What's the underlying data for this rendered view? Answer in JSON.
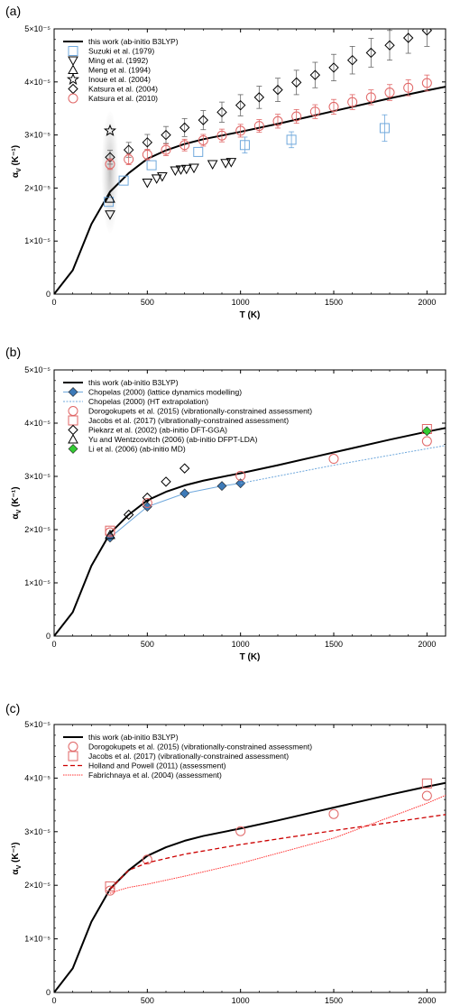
{
  "chart_data": [
    {
      "panel_label": "(a)",
      "type": "line+scatter",
      "xlabel": "T (K)",
      "ylabel": "α",
      "ylabel_sub": "V",
      "ylabel_units": " (K⁻¹)",
      "xlim": [
        0,
        2100
      ],
      "ylim": [
        0,
        5e-05
      ],
      "x_ticks": [
        0,
        500,
        1000,
        1500,
        2000
      ],
      "y_ticks": [
        0,
        1e-05,
        2e-05,
        3e-05,
        4e-05,
        5e-05
      ],
      "y_tick_labels": [
        "0",
        "1×10⁻⁵",
        "2×10⁻⁵",
        "3×10⁻⁵",
        "4×10⁻⁵",
        "5×10⁻⁵"
      ],
      "highlight_ellipse": {
        "x_center": 300,
        "x_half_width": 45,
        "y_center": 2.3e-05,
        "y_half_height": 1.15e-05
      },
      "series": [
        {
          "name": "this work (ab-initio B3LYP)",
          "kind": "line",
          "color": "#000000",
          "dash": "none",
          "width": 2,
          "x": [
            0,
            100,
            200,
            300,
            400,
            500,
            600,
            700,
            800,
            1000,
            1200,
            1400,
            1600,
            1800,
            2000,
            2100
          ],
          "y": [
            0.0,
            4.5e-06,
            1.32e-05,
            1.93e-05,
            2.28e-05,
            2.55e-05,
            2.71e-05,
            2.83e-05,
            2.92e-05,
            3.06e-05,
            3.21e-05,
            3.37e-05,
            3.53e-05,
            3.69e-05,
            3.84e-05,
            3.91e-05
          ]
        },
        {
          "name": "Suzuki et al. (1979)",
          "kind": "marker",
          "marker": "square",
          "color": "#6fa8dc",
          "x": [
            293,
            373,
            523,
            773,
            1023,
            1273,
            1773
          ],
          "y": [
            1.74e-05,
            2.14e-05,
            2.43e-05,
            2.68e-05,
            2.81e-05,
            2.91e-05,
            3.13e-05
          ],
          "err": [
            0,
            0,
            0,
            0,
            1.5e-06,
            1.5e-06,
            2.5e-06
          ]
        },
        {
          "name": "Ming et al. (1992)",
          "kind": "marker",
          "marker": "triangle-down",
          "color": "#000000",
          "x": [
            300,
            500,
            550,
            580,
            650,
            680,
            710,
            750,
            850,
            920,
            950
          ],
          "y": [
            1.5e-05,
            2.1e-05,
            2.18e-05,
            2.22e-05,
            2.33e-05,
            2.35e-05,
            2.36e-05,
            2.38e-05,
            2.45e-05,
            2.47e-05,
            2.49e-05
          ]
        },
        {
          "name": "Meng et al. (1994)",
          "kind": "marker",
          "marker": "triangle-up",
          "color": "#000000",
          "x": [
            300
          ],
          "y": [
            1.8e-05
          ]
        },
        {
          "name": "Inoue et al. (2004)",
          "kind": "marker",
          "marker": "star",
          "color": "#000000",
          "x": [
            300
          ],
          "y": [
            3.08e-05
          ]
        },
        {
          "name": "Katsura et al. (2004)",
          "kind": "marker",
          "marker": "diamond",
          "color": "#000000",
          "x": [
            300,
            400,
            500,
            600,
            700,
            800,
            900,
            1000,
            1100,
            1200,
            1300,
            1400,
            1500,
            1600,
            1700,
            1800,
            1900,
            2000
          ],
          "y": [
            2.58e-05,
            2.72e-05,
            2.86e-05,
            3e-05,
            3.14e-05,
            3.28e-05,
            3.43e-05,
            3.56e-05,
            3.71e-05,
            3.85e-05,
            3.99e-05,
            4.13e-05,
            4.27e-05,
            4.41e-05,
            4.55e-05,
            4.69e-05,
            4.83e-05,
            4.97e-05
          ],
          "err": [
            1.3e-06,
            1.4e-06,
            1.5e-06,
            1.6e-06,
            1.7e-06,
            1.8e-06,
            1.9e-06,
            2e-06,
            2.1e-06,
            2.2e-06,
            2.3e-06,
            2.4e-06,
            2.5e-06,
            2.6e-06,
            2.7e-06,
            2.8e-06,
            2.9e-06,
            3e-06
          ]
        },
        {
          "name": "Katsura et al. (2010)",
          "kind": "marker",
          "marker": "circle",
          "color": "#e06666",
          "x": [
            300,
            400,
            500,
            600,
            700,
            800,
            900,
            1000,
            1100,
            1200,
            1300,
            1400,
            1500,
            1600,
            1700,
            1800,
            1900,
            2000
          ],
          "y": [
            2.45e-05,
            2.54e-05,
            2.63e-05,
            2.72e-05,
            2.81e-05,
            2.9e-05,
            2.99e-05,
            3.08e-05,
            3.17e-05,
            3.26e-05,
            3.35e-05,
            3.44e-05,
            3.53e-05,
            3.62e-05,
            3.71e-05,
            3.8e-05,
            3.89e-05,
            3.98e-05
          ],
          "err": [
            1e-06,
            1e-06,
            1e-06,
            1.1e-06,
            1.1e-06,
            1.1e-06,
            1.2e-06,
            1.2e-06,
            1.2e-06,
            1.3e-06,
            1.3e-06,
            1.3e-06,
            1.4e-06,
            1.4e-06,
            1.4e-06,
            1.5e-06,
            1.5e-06,
            1.5e-06
          ]
        }
      ]
    },
    {
      "panel_label": "(b)",
      "type": "line+scatter",
      "xlabel": "T (K)",
      "ylabel": "α",
      "ylabel_sub": "V",
      "ylabel_units": " (K⁻¹)",
      "xlim": [
        0,
        2100
      ],
      "ylim": [
        0,
        5e-05
      ],
      "x_ticks": [
        0,
        500,
        1000,
        1500,
        2000
      ],
      "y_ticks": [
        0,
        1e-05,
        2e-05,
        3e-05,
        4e-05,
        5e-05
      ],
      "y_tick_labels": [
        "0",
        "1×10⁻⁵",
        "2×10⁻⁵",
        "3×10⁻⁵",
        "4×10⁻⁵",
        "5×10⁻⁵"
      ],
      "series": [
        {
          "name": "this work (ab-initio B3LYP)",
          "kind": "line",
          "color": "#000000",
          "dash": "none",
          "width": 2,
          "x": [
            0,
            100,
            200,
            300,
            400,
            500,
            600,
            700,
            800,
            1000,
            1200,
            1400,
            1600,
            1800,
            2000,
            2100
          ],
          "y": [
            0.0,
            4.5e-06,
            1.32e-05,
            1.93e-05,
            2.28e-05,
            2.55e-05,
            2.71e-05,
            2.83e-05,
            2.92e-05,
            3.06e-05,
            3.21e-05,
            3.37e-05,
            3.53e-05,
            3.69e-05,
            3.84e-05,
            3.91e-05
          ]
        },
        {
          "name": "Chopelas (2000) (lattice dynamics modelling)",
          "kind": "line+marker",
          "marker": "diamond-filled",
          "color": "#3d7ab8",
          "line_color": "#6fa8dc",
          "dash": "none",
          "width": 1,
          "x": [
            300,
            500,
            700,
            900,
            1000
          ],
          "y": [
            1.85e-05,
            2.43e-05,
            2.68e-05,
            2.82e-05,
            2.87e-05
          ]
        },
        {
          "name": "Chopelas (2000) (HT extrapolation)",
          "kind": "line",
          "color": "#6fa8dc",
          "dash": "2,1.5",
          "width": 1,
          "x": [
            1000,
            1500,
            2000,
            2100
          ],
          "y": [
            2.87e-05,
            3.21e-05,
            3.52e-05,
            3.58e-05
          ]
        },
        {
          "name": "Dorogokupets et al. (2015) (vibrationally-constrained assessment)",
          "kind": "marker",
          "marker": "circle",
          "color": "#e06666",
          "x": [
            300,
            500,
            1000,
            1500,
            2000
          ],
          "y": [
            1.95e-05,
            2.5e-05,
            3.01e-05,
            3.33e-05,
            3.66e-05
          ]
        },
        {
          "name": "Jacobs et al. (2017) (vibrationally-constrained assessment)",
          "kind": "marker",
          "marker": "square",
          "color": "#e06666",
          "x": [
            300,
            2000
          ],
          "y": [
            1.98e-05,
            3.89e-05
          ]
        },
        {
          "name": "Piekarz et al. (2002) (ab-initio DFT-GGA)",
          "kind": "marker",
          "marker": "diamond",
          "color": "#000000",
          "x": [
            400,
            500,
            600,
            700
          ],
          "y": [
            2.28e-05,
            2.6e-05,
            2.9e-05,
            3.15e-05
          ]
        },
        {
          "name": "Yu and Wentzcovitch (2006) (ab-initio DFPT-LDA)",
          "kind": "marker",
          "marker": "triangle-up",
          "color": "#000000",
          "x": [
            300
          ],
          "y": [
            1.9e-05
          ]
        },
        {
          "name": "Li et al. (2006) (ab-initio MD)",
          "kind": "marker",
          "marker": "diamond-filled",
          "color": "#33cc33",
          "x": [
            2000
          ],
          "y": [
            3.85e-05
          ]
        }
      ]
    },
    {
      "panel_label": "(c)",
      "type": "line+scatter",
      "xlabel": "T (K)",
      "ylabel": "α",
      "ylabel_sub": "V",
      "ylabel_units": " (K⁻¹)",
      "xlim": [
        0,
        2100
      ],
      "ylim": [
        0,
        5e-05
      ],
      "x_ticks": [
        0,
        500,
        1000,
        1500,
        2000
      ],
      "y_ticks": [
        0,
        1e-05,
        2e-05,
        3e-05,
        4e-05,
        5e-05
      ],
      "y_tick_labels": [
        "0",
        "1×10⁻⁵",
        "2×10⁻⁵",
        "3×10⁻⁵",
        "4×10⁻⁵",
        "5×10⁻⁵"
      ],
      "series": [
        {
          "name": "this work (ab-initio B3LYP)",
          "kind": "line",
          "color": "#000000",
          "dash": "none",
          "width": 2,
          "x": [
            0,
            100,
            200,
            300,
            400,
            500,
            600,
            700,
            800,
            1000,
            1200,
            1400,
            1600,
            1800,
            2000,
            2100
          ],
          "y": [
            0.0,
            4.5e-06,
            1.32e-05,
            1.93e-05,
            2.28e-05,
            2.55e-05,
            2.71e-05,
            2.83e-05,
            2.92e-05,
            3.06e-05,
            3.21e-05,
            3.37e-05,
            3.53e-05,
            3.69e-05,
            3.84e-05,
            3.91e-05
          ]
        },
        {
          "name": "Dorogokupets et al. (2015) (vibrationally-constrained assessment)",
          "kind": "marker",
          "marker": "circle",
          "color": "#e06666",
          "x": [
            300,
            500,
            1000,
            1500,
            2000
          ],
          "y": [
            1.9e-05,
            2.48e-05,
            3.01e-05,
            3.33e-05,
            3.67e-05
          ]
        },
        {
          "name": "Jacobs et al. (2017) (vibrationally-constrained assessment)",
          "kind": "marker",
          "marker": "square",
          "color": "#e06666",
          "x": [
            300,
            2000
          ],
          "y": [
            1.98e-05,
            3.9e-05
          ]
        },
        {
          "name": "Holland and Powell (2011) (assessment)",
          "kind": "line",
          "color": "#cc0000",
          "dash": "5,3",
          "width": 1.3,
          "x": [
            300,
            400,
            500,
            700,
            1000,
            1500,
            2000,
            2100
          ],
          "y": [
            1.93e-05,
            2.28e-05,
            2.42e-05,
            2.58e-05,
            2.76e-05,
            3.02e-05,
            3.27e-05,
            3.32e-05
          ]
        },
        {
          "name": "Fabrichnaya et al. (2004) (assessment)",
          "kind": "line",
          "color": "#ff3333",
          "dash": "1.5,1",
          "width": 1,
          "x": [
            300,
            350,
            400,
            500,
            700,
            1000,
            1500,
            2000,
            2100
          ],
          "y": [
            1.85e-05,
            1.91e-05,
            1.96e-05,
            2.02e-05,
            2.17e-05,
            2.41e-05,
            2.88e-05,
            3.53e-05,
            3.68e-05
          ]
        }
      ]
    }
  ]
}
